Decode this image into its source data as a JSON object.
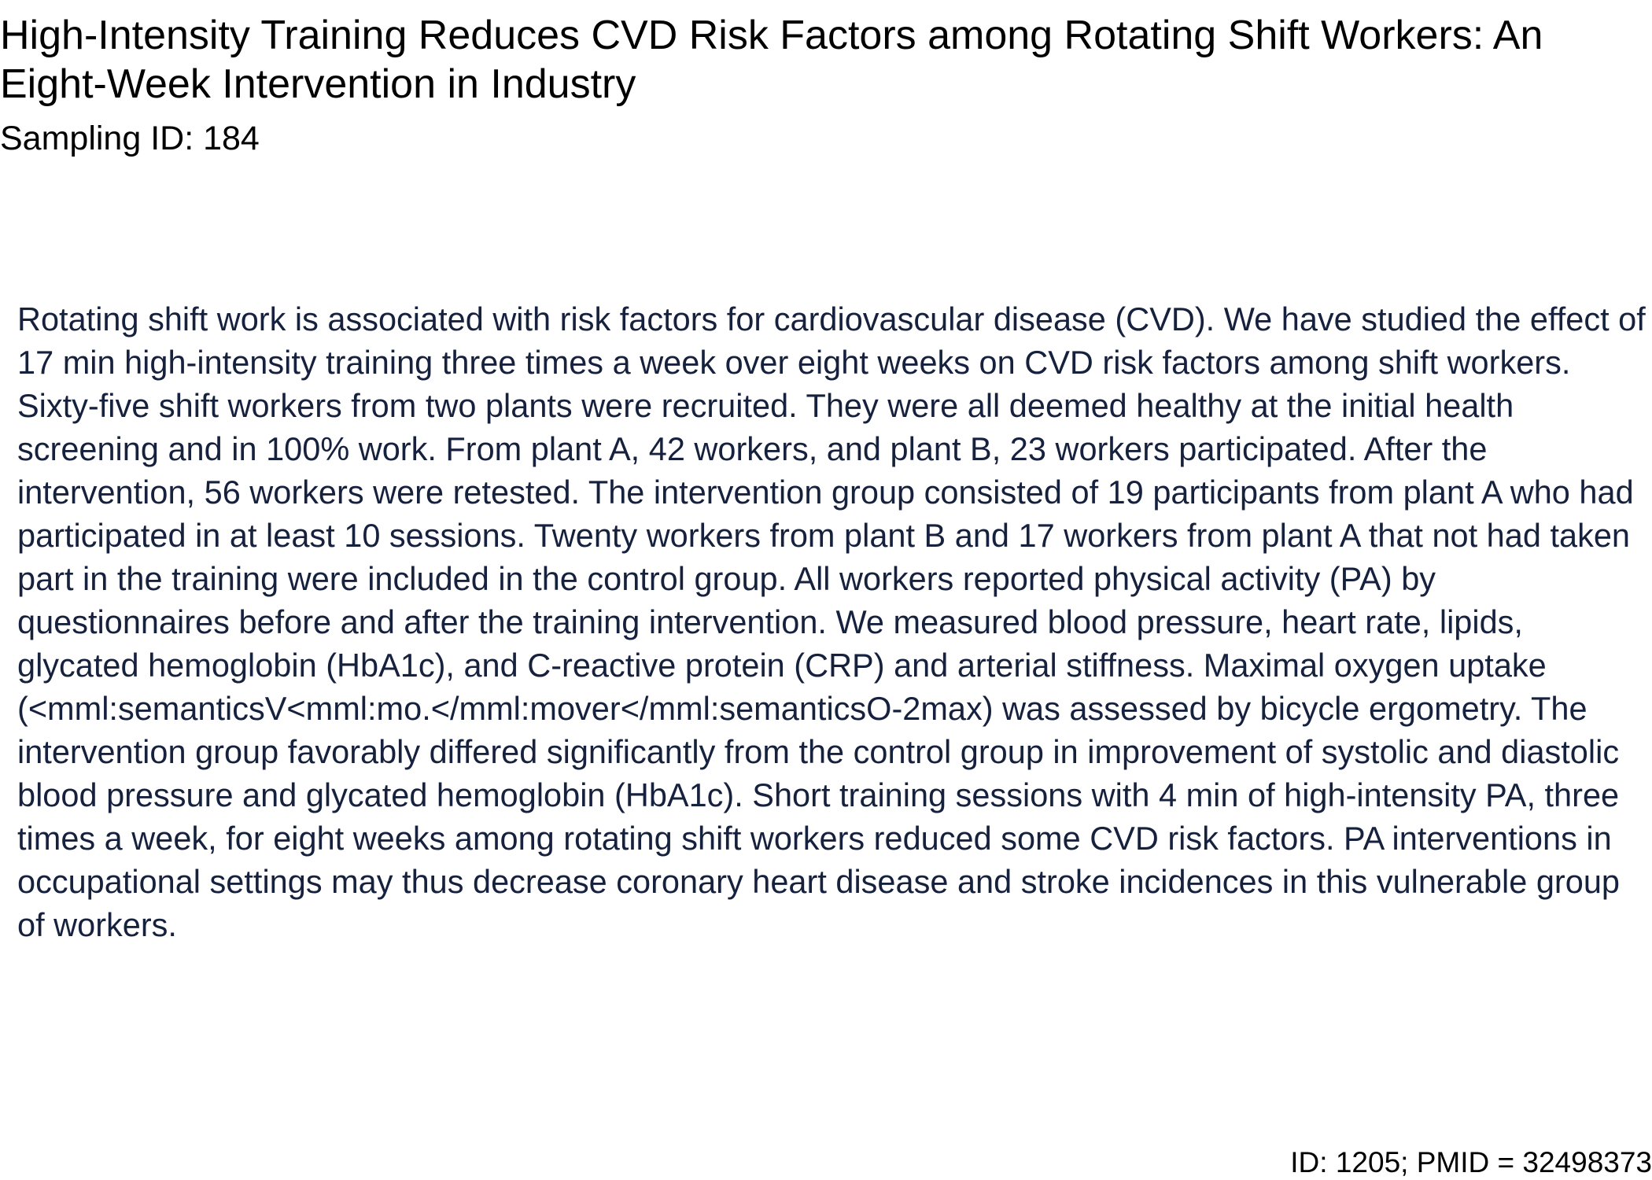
{
  "document": {
    "title": "High-Intensity Training Reduces CVD Risk Factors among Rotating Shift Workers: An Eight-Week Intervention in Industry",
    "sampling_id": "Sampling ID: 184",
    "abstract": "Rotating shift work is associated with risk factors for cardiovascular disease (CVD). We have studied the effect of 17 min high-intensity training three times a week over eight weeks on CVD risk factors among shift workers. Sixty-five shift workers from two plants were recruited. They were all deemed healthy at the initial health screening and in 100% work. From plant A, 42 workers, and plant B, 23 workers participated. After the intervention, 56 workers were retested. The intervention group consisted of 19 participants from plant A who had participated in at least 10 sessions. Twenty workers from plant B and 17 workers from plant A that not had taken part in the training were included in the control group. All workers reported physical activity (PA) by questionnaires before and after the training intervention. We measured blood pressure, heart rate, lipids, glycated hemoglobin (HbA1c), and C-reactive protein (CRP) and arterial stiffness. Maximal oxygen uptake (<mml:semanticsV<mml:mo.</mml:mover</mml:semanticsO-2max) was assessed by bicycle ergometry. The intervention group favorably differed significantly from the control group in improvement of systolic and diastolic blood pressure and glycated hemoglobin (HbA1c). Short training sessions with 4 min of high-intensity PA, three times a week, for eight weeks among rotating shift workers reduced some CVD risk factors. PA interventions in occupational settings may thus decrease coronary heart disease and stroke incidences in this vulnerable group of workers.",
    "footer_id": "ID: 1205; PMID = 32498373"
  },
  "colors": {
    "title_text": "#000000",
    "abstract_text": "#16213e",
    "background": "#ffffff"
  }
}
